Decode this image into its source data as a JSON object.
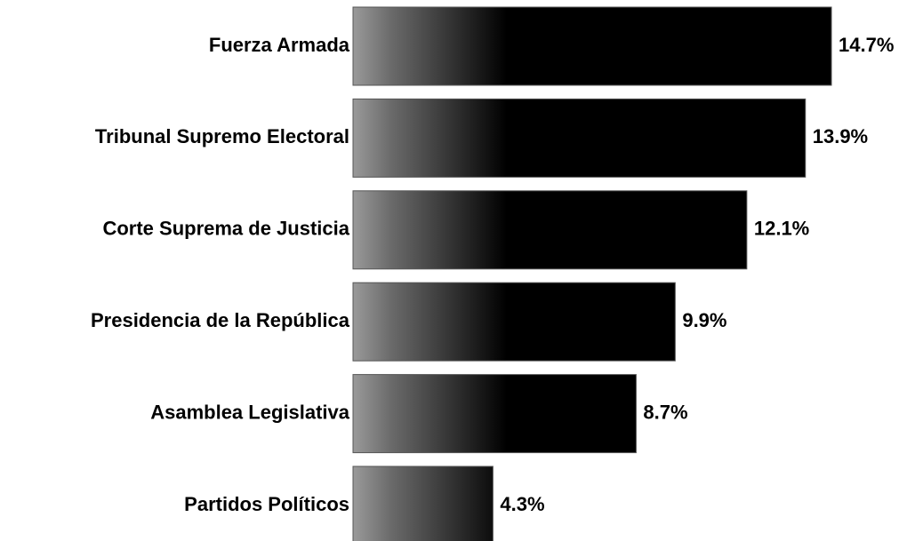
{
  "chart_data": {
    "type": "bar",
    "orientation": "horizontal",
    "categories": [
      "Fuerza Armada",
      "Tribunal Supremo Electoral",
      "Corte Suprema de Justicia",
      "Presidencia de la República",
      "Asamblea Legislativa",
      "Partidos Políticos"
    ],
    "values": [
      14.7,
      13.9,
      12.1,
      9.9,
      8.7,
      4.3
    ],
    "value_labels": [
      "14.7%",
      "13.9%",
      "12.1%",
      "9.9%",
      "8.7%",
      "4.3%"
    ],
    "color": "#000000"
  }
}
